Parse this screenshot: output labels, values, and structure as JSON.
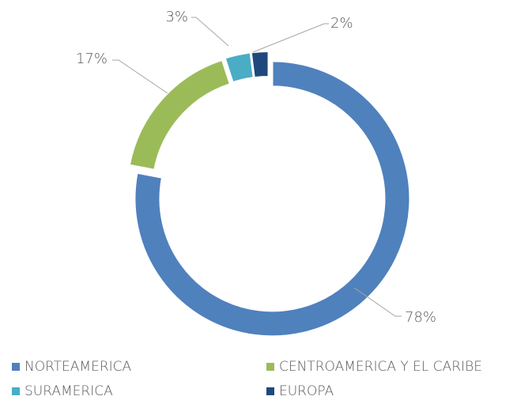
{
  "chart_data": {
    "type": "donut",
    "categories": [
      "NORTEAMERICA",
      "CENTROAMERICA Y EL CARIBE",
      "SURAMERICA",
      "EUROPA"
    ],
    "values": [
      78,
      17,
      3,
      2
    ],
    "value_labels": [
      "78%",
      "17%",
      "3%",
      "2%"
    ],
    "colors": [
      "#4f81bd",
      "#9bbb59",
      "#4bacc6",
      "#1f497d"
    ],
    "legend": "bottom"
  }
}
